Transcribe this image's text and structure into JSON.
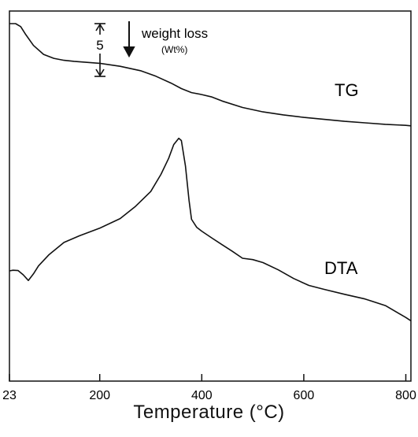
{
  "chart_data": {
    "type": "line",
    "xlabel": "Temperature (°C)",
    "ylabel": "",
    "xlim": [
      23,
      810
    ],
    "x_ticks": [
      {
        "value": 23,
        "label": "23"
      },
      {
        "value": 200,
        "label": "200"
      },
      {
        "value": 400,
        "label": "400"
      },
      {
        "value": 600,
        "label": "600"
      },
      {
        "value": 800,
        "label": "800"
      }
    ],
    "grid": false,
    "annotations": {
      "scale_bar_value": "5",
      "weight_loss_label": "weight loss",
      "weight_loss_unit": "(Wt%)"
    },
    "series": [
      {
        "name": "TG",
        "color": "#111111",
        "x": [
          23,
          35,
          45,
          55,
          70,
          90,
          110,
          130,
          150,
          200,
          240,
          280,
          310,
          340,
          360,
          380,
          400,
          420,
          440,
          480,
          520,
          560,
          600,
          640,
          680,
          720,
          760,
          800,
          810
        ],
        "y": [
          0,
          0,
          -0.6,
          -2.2,
          -4.4,
          -6.2,
          -7.0,
          -7.4,
          -7.6,
          -8.0,
          -8.6,
          -9.5,
          -10.6,
          -12.0,
          -13.1,
          -13.9,
          -14.3,
          -14.8,
          -15.6,
          -16.9,
          -17.8,
          -18.4,
          -18.9,
          -19.3,
          -19.7,
          -20.0,
          -20.3,
          -20.5,
          -20.6
        ]
      },
      {
        "name": "DTA",
        "color": "#111111",
        "x": [
          23,
          30,
          40,
          50,
          60,
          70,
          80,
          100,
          130,
          160,
          200,
          240,
          270,
          300,
          320,
          335,
          345,
          355,
          360,
          368,
          375,
          380,
          390,
          400,
          420,
          440,
          460,
          480,
          500,
          520,
          550,
          580,
          610,
          640,
          680,
          720,
          760,
          800,
          810
        ],
        "y": [
          0.0,
          0.2,
          0.1,
          -1.2,
          -2.9,
          -0.9,
          1.5,
          4.8,
          8.6,
          10.6,
          12.9,
          15.8,
          19.5,
          24.0,
          29.2,
          34.0,
          38.2,
          40.1,
          39.4,
          31.7,
          21.4,
          15.6,
          13.2,
          12.0,
          9.9,
          7.9,
          5.9,
          3.8,
          3.4,
          2.5,
          0.3,
          -2.3,
          -4.4,
          -5.6,
          -7.1,
          -8.5,
          -10.5,
          -14.1,
          -15.1
        ]
      }
    ]
  }
}
